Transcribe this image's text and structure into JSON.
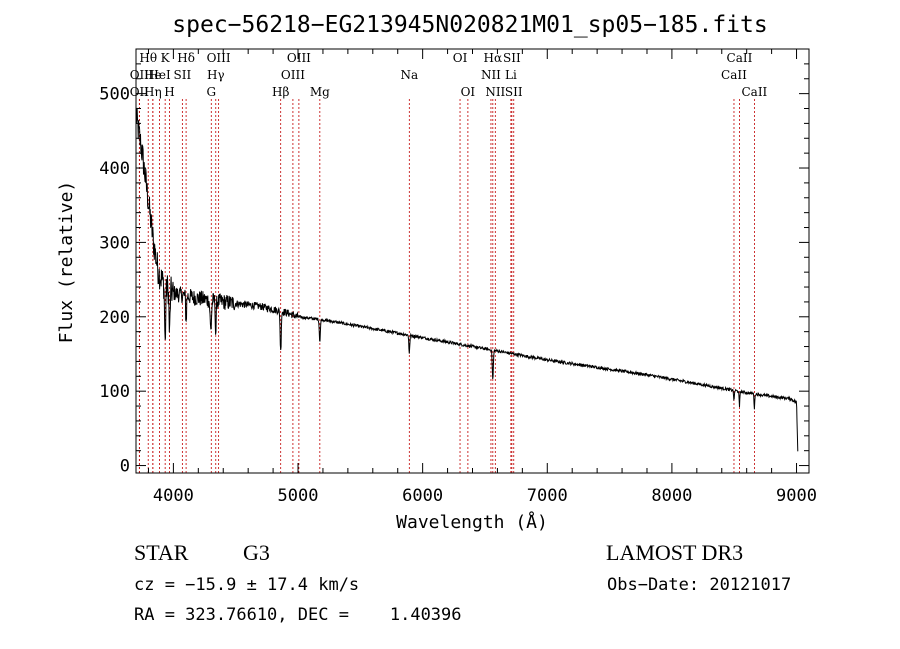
{
  "chart_data": {
    "type": "line",
    "title": "spec−56218−EG213945N020821M01_sp05−185.fits",
    "xlabel": "Wavelength (Å)",
    "ylabel": "Flux (relative)",
    "xlim": [
      3700,
      9100
    ],
    "ylim": [
      -10,
      560
    ],
    "xticks": [
      4000,
      5000,
      6000,
      7000,
      8000,
      9000
    ],
    "yticks": [
      0,
      100,
      200,
      300,
      400,
      500
    ],
    "continuum": [
      [
        3700,
        470
      ],
      [
        3720,
        450
      ],
      [
        3750,
        420
      ],
      [
        3780,
        380
      ],
      [
        3810,
        340
      ],
      [
        3840,
        300
      ],
      [
        3880,
        260
      ],
      [
        3920,
        245
      ],
      [
        3960,
        238
      ],
      [
        4000,
        232
      ],
      [
        4100,
        228
      ],
      [
        4200,
        225
      ],
      [
        4300,
        222
      ],
      [
        4400,
        220
      ],
      [
        4500,
        218
      ],
      [
        4600,
        216
      ],
      [
        4700,
        214
      ],
      [
        4800,
        210
      ],
      [
        4900,
        206
      ],
      [
        5000,
        200
      ],
      [
        5200,
        196
      ],
      [
        5400,
        190
      ],
      [
        5600,
        184
      ],
      [
        5800,
        178
      ],
      [
        6000,
        172
      ],
      [
        6200,
        166
      ],
      [
        6400,
        160
      ],
      [
        6600,
        154
      ],
      [
        6800,
        148
      ],
      [
        7000,
        142
      ],
      [
        7200,
        137
      ],
      [
        7400,
        132
      ],
      [
        7600,
        127
      ],
      [
        7800,
        122
      ],
      [
        8000,
        116
      ],
      [
        8200,
        110
      ],
      [
        8400,
        104
      ],
      [
        8600,
        98
      ],
      [
        8800,
        93
      ],
      [
        8950,
        90
      ],
      [
        9000,
        85
      ],
      [
        9010,
        20
      ]
    ],
    "absorption_features": [
      {
        "wavelength": 3934,
        "depth": 80,
        "width": 6
      },
      {
        "wavelength": 3969,
        "depth": 60,
        "width": 6
      },
      {
        "wavelength": 4102,
        "depth": 35,
        "width": 5
      },
      {
        "wavelength": 4300,
        "depth": 40,
        "width": 8
      },
      {
        "wavelength": 4340,
        "depth": 45,
        "width": 5
      },
      {
        "wavelength": 4861,
        "depth": 55,
        "width": 6
      },
      {
        "wavelength": 5175,
        "depth": 30,
        "width": 6
      },
      {
        "wavelength": 5893,
        "depth": 25,
        "width": 5
      },
      {
        "wavelength": 6563,
        "depth": 40,
        "width": 6
      },
      {
        "wavelength": 8498,
        "depth": 15,
        "width": 4
      },
      {
        "wavelength": 8542,
        "depth": 22,
        "width": 4
      },
      {
        "wavelength": 8662,
        "depth": 20,
        "width": 4
      }
    ],
    "line_markers": [
      {
        "label": "OII",
        "wavelength": 3727,
        "row": 2
      },
      {
        "label": "OII",
        "wavelength": 3727,
        "row": 3
      },
      {
        "label": "Hθ",
        "wavelength": 3798,
        "row": 1
      },
      {
        "label": "He",
        "wavelength": 3835,
        "row": 2
      },
      {
        "label": "Hη",
        "wavelength": 3835,
        "row": 3
      },
      {
        "label": "K",
        "wavelength": 3934,
        "row": 1
      },
      {
        "label": "H",
        "wavelength": 3969,
        "row": 3
      },
      {
        "label": "HeI",
        "wavelength": 3889,
        "row": 2
      },
      {
        "label": "SII",
        "wavelength": 4072,
        "row": 2
      },
      {
        "label": "Hδ",
        "wavelength": 4102,
        "row": 1
      },
      {
        "label": "G",
        "wavelength": 4304,
        "row": 3
      },
      {
        "label": "Hγ",
        "wavelength": 4340,
        "row": 2
      },
      {
        "label": "OIII",
        "wavelength": 4363,
        "row": 1
      },
      {
        "label": "Hβ",
        "wavelength": 4861,
        "row": 3
      },
      {
        "label": "OIII",
        "wavelength": 4959,
        "row": 2
      },
      {
        "label": "OIII",
        "wavelength": 5007,
        "row": 1
      },
      {
        "label": "Mg",
        "wavelength": 5175,
        "row": 3
      },
      {
        "label": "Na",
        "wavelength": 5893,
        "row": 2
      },
      {
        "label": "OI",
        "wavelength": 6300,
        "row": 1
      },
      {
        "label": "OI",
        "wavelength": 6363,
        "row": 3
      },
      {
        "label": "NII",
        "wavelength": 6548,
        "row": 2
      },
      {
        "label": "Hα",
        "wavelength": 6563,
        "row": 1
      },
      {
        "label": "NII",
        "wavelength": 6583,
        "row": 3
      },
      {
        "label": "SII",
        "wavelength": 6716,
        "row": 1
      },
      {
        "label": "Li",
        "wavelength": 6708,
        "row": 2
      },
      {
        "label": "SII",
        "wavelength": 6731,
        "row": 3
      },
      {
        "label": "CaII",
        "wavelength": 8498,
        "row": 2
      },
      {
        "label": "CaII",
        "wavelength": 8542,
        "row": 1
      },
      {
        "label": "CaII",
        "wavelength": 8662,
        "row": 3
      }
    ]
  },
  "info": {
    "object_class": "STAR",
    "subclass": "G3",
    "survey": "LAMOST DR3",
    "redshift": "cz = −15.9 ± 17.4 km/s",
    "obs_date": "Obs−Date: 20121017",
    "coords": "RA = 323.76610, DEC =    1.40396"
  },
  "colors": {
    "spectrum": "#000000",
    "marker_line": "#c00000",
    "axes": "#000000"
  }
}
